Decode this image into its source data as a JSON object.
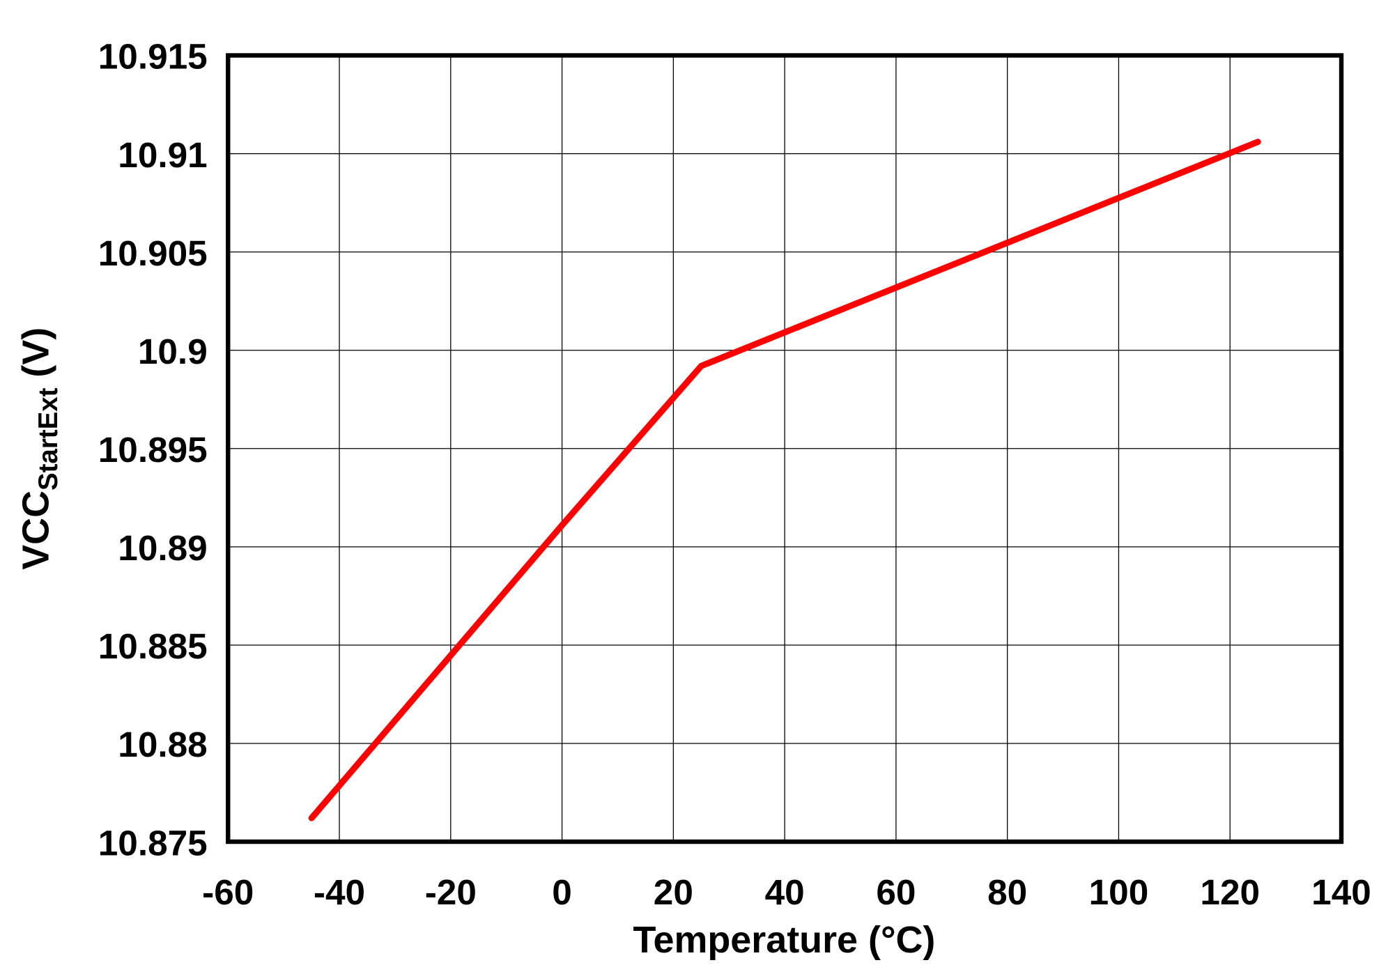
{
  "chart_data": {
    "type": "line",
    "title": "",
    "xlabel": "Temperature (°C)",
    "ylabel_main": "VCC",
    "ylabel_sub": "StartExt",
    "ylabel_unit": " (V)",
    "xlim": [
      -60,
      140
    ],
    "ylim": [
      10.875,
      10.915
    ],
    "xticks": [
      -60,
      -40,
      -20,
      0,
      20,
      40,
      60,
      80,
      100,
      120,
      140
    ],
    "xtick_labels": [
      "-60",
      "-40",
      "-20",
      "0",
      "20",
      "40",
      "60",
      "80",
      "100",
      "120",
      "140"
    ],
    "yticks": [
      10.875,
      10.88,
      10.885,
      10.89,
      10.895,
      10.9,
      10.905,
      10.91,
      10.915
    ],
    "ytick_labels": [
      "10.875",
      "10.88",
      "10.885",
      "10.89",
      "10.895",
      "10.9",
      "10.905",
      "10.91",
      "10.915"
    ],
    "grid": true,
    "series": [
      {
        "color": "#ff0000",
        "x": [
          -45,
          0,
          25,
          125
        ],
        "y": [
          10.8762,
          10.8911,
          10.8992,
          10.9106
        ]
      }
    ]
  }
}
